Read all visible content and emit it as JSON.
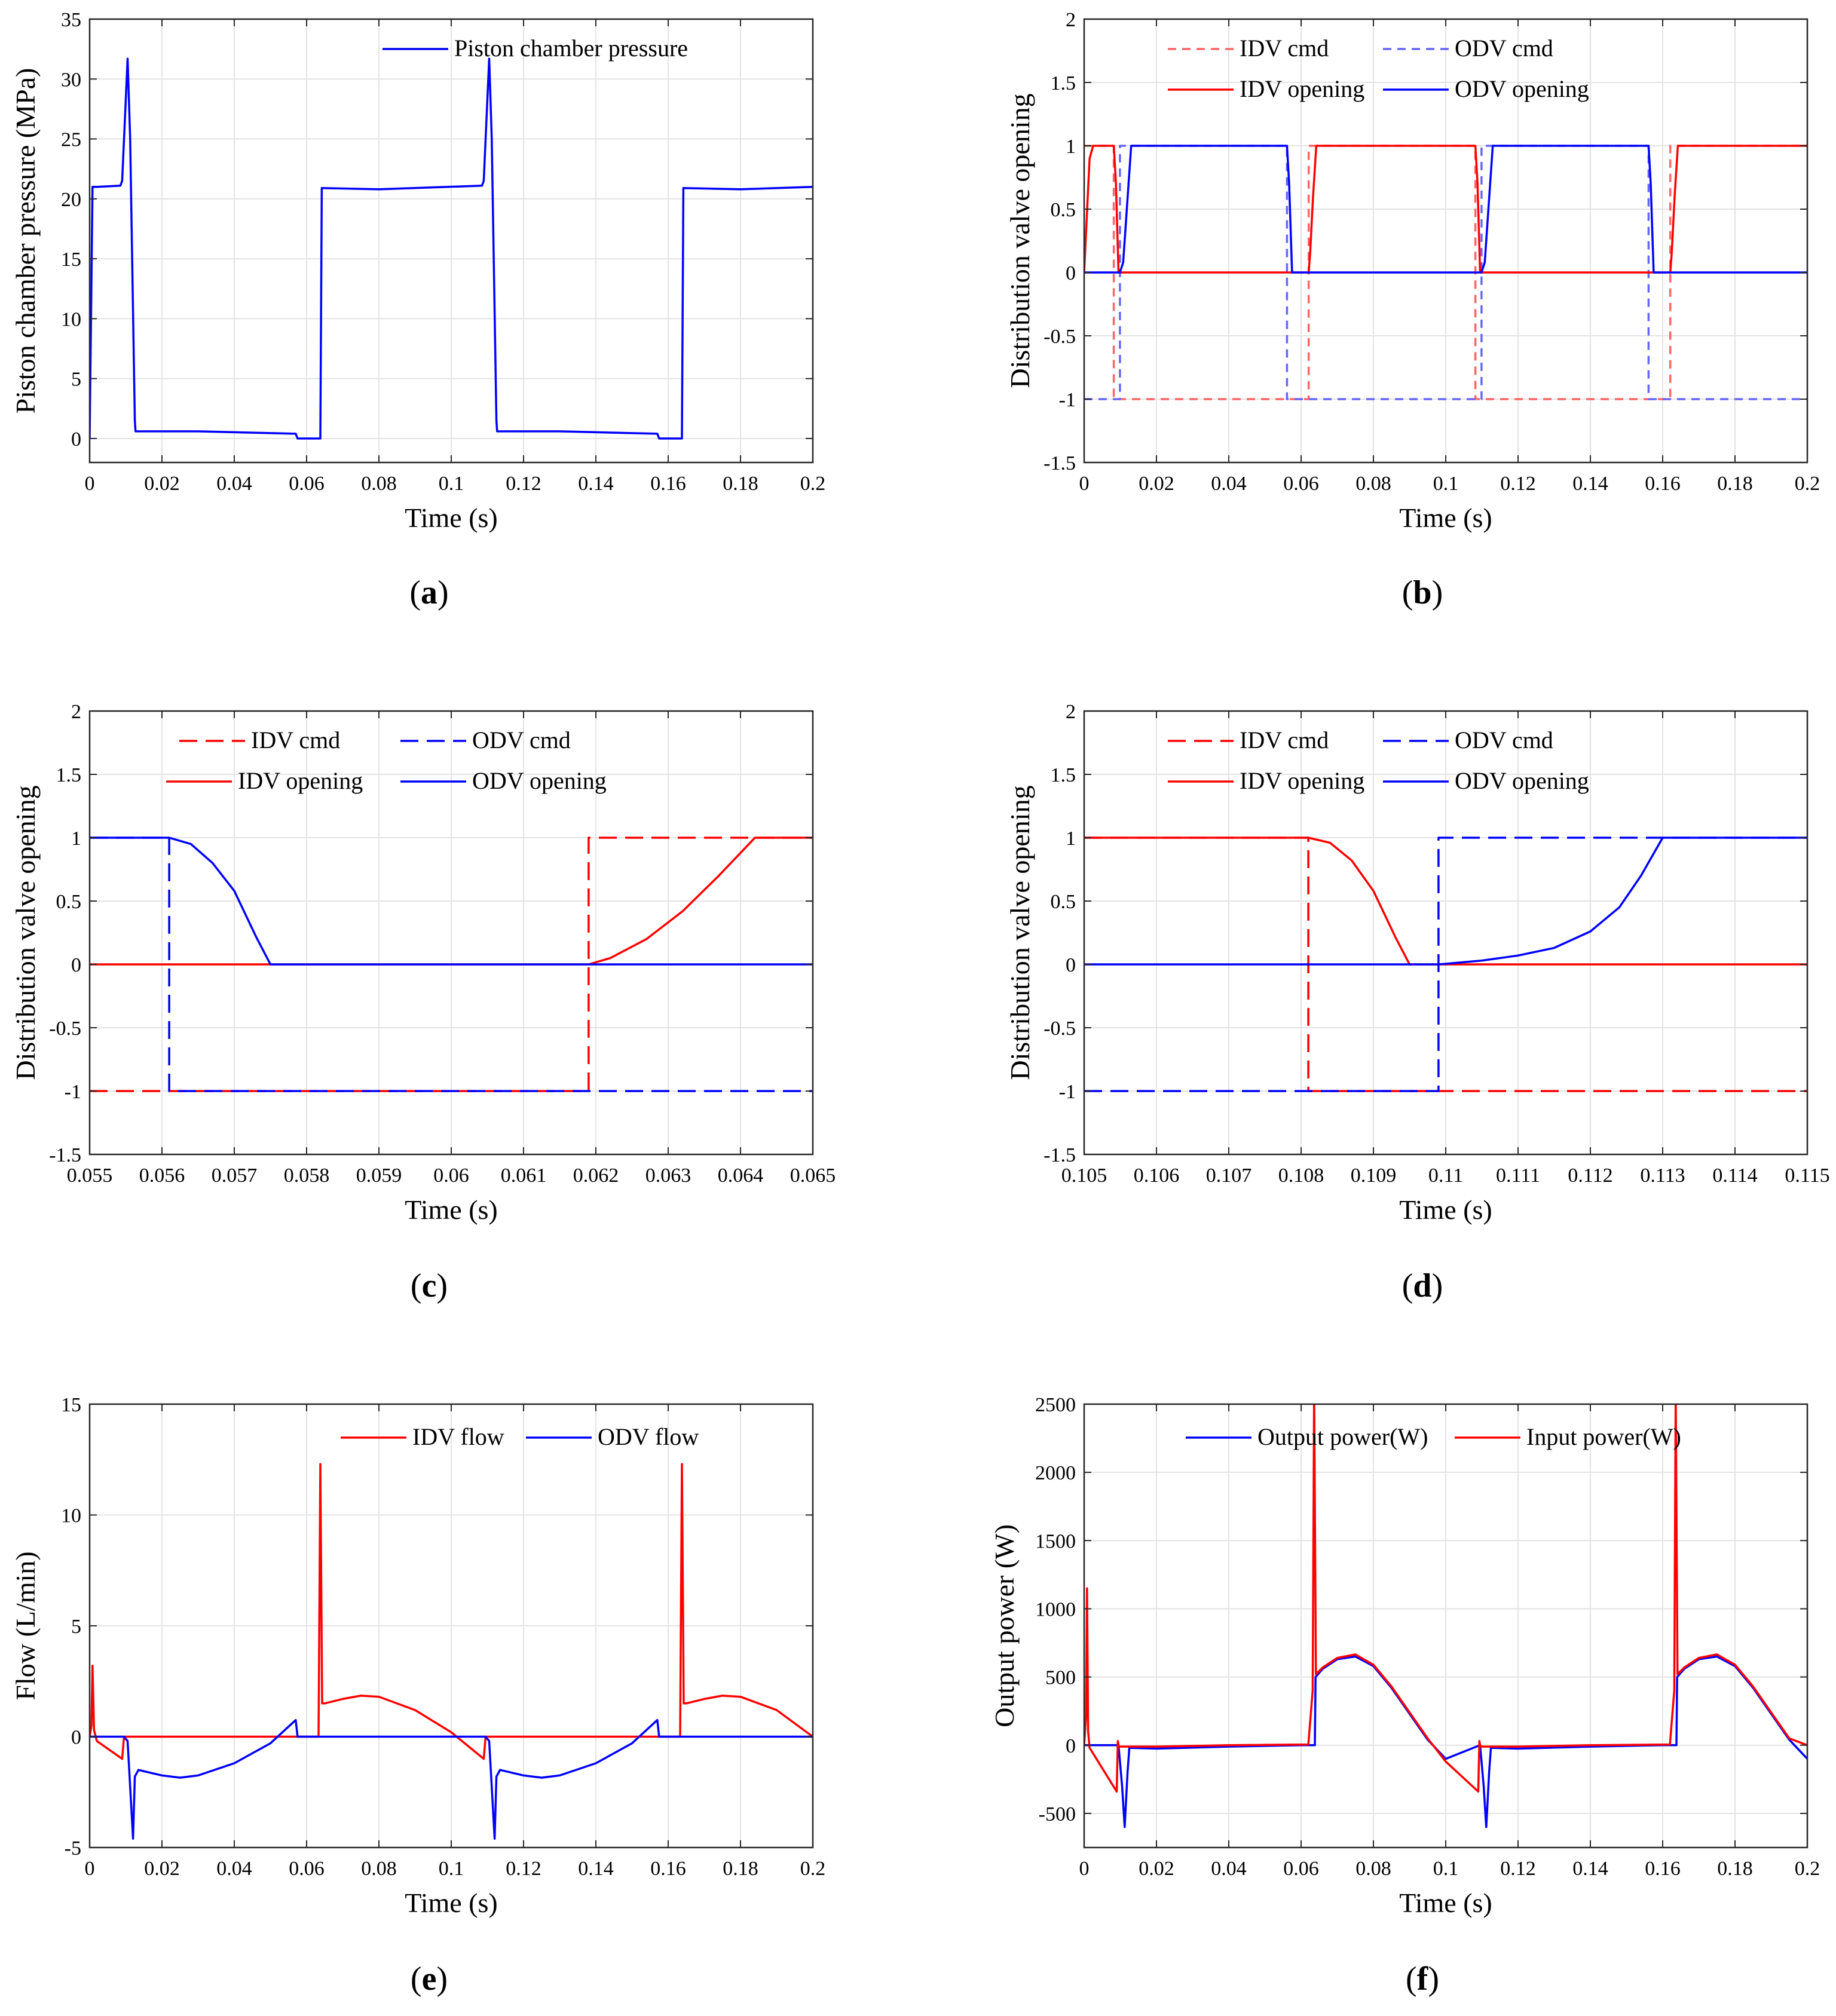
{
  "chart_data": [
    {
      "id": "a",
      "type": "line",
      "caption": "a",
      "xlabel": "Time (s)",
      "ylabel": "Piston chamber pressure (MPa)",
      "xlim": [
        0,
        0.2
      ],
      "ylim": [
        -2,
        35
      ],
      "xticks": [
        0,
        0.02,
        0.04,
        0.06,
        0.08,
        0.1,
        0.12,
        0.14,
        0.16,
        0.18,
        0.2
      ],
      "yticks": [
        0,
        5,
        10,
        15,
        20,
        25,
        30,
        35
      ],
      "legend": "top-right",
      "grid": true,
      "series": [
        {
          "name": "Piston chamber pressure",
          "color": "#0000ff",
          "dash": "solid",
          "x": [
            0,
            0.0008,
            0.002,
            0.0085,
            0.009,
            0.0105,
            0.0112,
            0.0125,
            0.0127,
            0.03,
            0.057,
            0.0575,
            0.0638,
            0.0642,
            0.08,
            0.1085,
            0.109,
            0.1105,
            0.1112,
            0.1125,
            0.1127,
            0.13,
            0.157,
            0.1575,
            0.1638,
            0.1642,
            0.18,
            0.2
          ],
          "y": [
            0,
            21,
            21,
            21.1,
            21.5,
            31.7,
            25,
            1.5,
            0.6,
            0.6,
            0.4,
            0,
            0,
            20.9,
            20.8,
            21.1,
            21.5,
            31.7,
            25,
            1.5,
            0.6,
            0.6,
            0.4,
            0,
            0,
            20.9,
            20.8,
            21
          ]
        }
      ]
    },
    {
      "id": "b",
      "type": "line",
      "caption": "b",
      "xlabel": "Time (s)",
      "ylabel": "Distribution valve opening",
      "xlim": [
        0,
        0.2
      ],
      "ylim": [
        -1.5,
        2
      ],
      "xticks": [
        0,
        0.02,
        0.04,
        0.06,
        0.08,
        0.1,
        0.12,
        0.14,
        0.16,
        0.18,
        0.2
      ],
      "yticks": [
        -1.5,
        -1,
        -0.5,
        0,
        0.5,
        1,
        1.5,
        2
      ],
      "legend": "top",
      "grid": true,
      "series": [
        {
          "name": "IDV cmd",
          "color": "#ff6666",
          "dash": "dashed",
          "x": [
            0,
            0.0082,
            0.0082,
            0.0621,
            0.0621,
            0.1082,
            0.1082,
            0.1621,
            0.1621,
            0.2
          ],
          "y": [
            1,
            1,
            -1,
            -1,
            1,
            1,
            -1,
            -1,
            1,
            1
          ]
        },
        {
          "name": "ODV cmd",
          "color": "#6666ff",
          "dash": "dashed",
          "x": [
            0,
            0.0099,
            0.0099,
            0.0561,
            0.0561,
            0.1099,
            0.1099,
            0.1561,
            0.1561,
            0.2
          ],
          "y": [
            -1,
            -1,
            1,
            1,
            -1,
            -1,
            1,
            1,
            -1,
            -1
          ]
        },
        {
          "name": "IDV opening",
          "color": "#ff0000",
          "dash": "solid",
          "x": [
            0,
            0.0005,
            0.0015,
            0.0025,
            0.0082,
            0.0088,
            0.0095,
            0.0621,
            0.0625,
            0.0633,
            0.0642,
            0.1082,
            0.1088,
            0.1095,
            0.1621,
            0.1625,
            0.1633,
            0.1642,
            0.2
          ],
          "y": [
            0,
            0.3,
            0.9,
            1,
            1,
            0.7,
            0,
            0,
            0.15,
            0.6,
            1,
            1,
            0.7,
            0,
            0,
            0.15,
            0.6,
            1,
            1
          ]
        },
        {
          "name": "ODV opening",
          "color": "#0000ff",
          "dash": "solid",
          "x": [
            0,
            0.0099,
            0.0108,
            0.0118,
            0.013,
            0.0561,
            0.0567,
            0.0575,
            0.1099,
            0.1108,
            0.1118,
            0.113,
            0.1561,
            0.1567,
            0.1575,
            0.2
          ],
          "y": [
            0,
            0,
            0.08,
            0.5,
            1,
            1,
            0.7,
            0,
            0,
            0.08,
            0.5,
            1,
            1,
            0.7,
            0,
            0
          ]
        }
      ]
    },
    {
      "id": "c",
      "type": "line",
      "caption": "c",
      "xlabel": "Time (s)",
      "ylabel": "Distribution valve opening",
      "xlim": [
        0.055,
        0.065
      ],
      "ylim": [
        -1.5,
        2
      ],
      "xticks": [
        0.055,
        0.056,
        0.057,
        0.058,
        0.059,
        0.06,
        0.061,
        0.062,
        0.063,
        0.064,
        0.065
      ],
      "yticks": [
        -1.5,
        -1,
        -0.5,
        0,
        0.5,
        1,
        1.5,
        2
      ],
      "legend": "top",
      "grid": true,
      "series": [
        {
          "name": "IDV cmd",
          "color": "#ff0000",
          "dash": "dashed",
          "x": [
            0.055,
            0.0619,
            0.0619,
            0.065
          ],
          "y": [
            -1,
            -1,
            1,
            1
          ]
        },
        {
          "name": "ODV cmd",
          "color": "#0000ff",
          "dash": "dashed",
          "x": [
            0.055,
            0.0561,
            0.0561,
            0.065
          ],
          "y": [
            1,
            1,
            -1,
            -1
          ]
        },
        {
          "name": "IDV opening",
          "color": "#ff0000",
          "dash": "solid",
          "x": [
            0.055,
            0.0619,
            0.0622,
            0.0627,
            0.0632,
            0.0637,
            0.0642,
            0.065
          ],
          "y": [
            0,
            0,
            0.05,
            0.2,
            0.42,
            0.7,
            1,
            1
          ]
        },
        {
          "name": "ODV opening",
          "color": "#0000ff",
          "dash": "solid",
          "x": [
            0.055,
            0.0561,
            0.0564,
            0.0567,
            0.057,
            0.0573,
            0.0575,
            0.065
          ],
          "y": [
            1,
            1,
            0.95,
            0.8,
            0.58,
            0.22,
            0,
            0
          ]
        }
      ]
    },
    {
      "id": "d",
      "type": "line",
      "caption": "d",
      "xlabel": "Time (s)",
      "ylabel": "Distribution valve opening",
      "xlim": [
        0.105,
        0.115
      ],
      "ylim": [
        -1.5,
        2
      ],
      "xticks": [
        0.105,
        0.106,
        0.107,
        0.108,
        0.109,
        0.11,
        0.111,
        0.112,
        0.113,
        0.114,
        0.115
      ],
      "yticks": [
        -1.5,
        -1,
        -0.5,
        0,
        0.5,
        1,
        1.5,
        2
      ],
      "legend": "top",
      "grid": true,
      "series": [
        {
          "name": "IDV cmd",
          "color": "#ff0000",
          "dash": "dashed",
          "x": [
            0.105,
            0.1081,
            0.1081,
            0.115
          ],
          "y": [
            1,
            1,
            -1,
            -1
          ]
        },
        {
          "name": "ODV cmd",
          "color": "#0000ff",
          "dash": "dashed",
          "x": [
            0.105,
            0.1099,
            0.1099,
            0.115
          ],
          "y": [
            -1,
            -1,
            1,
            1
          ]
        },
        {
          "name": "IDV opening",
          "color": "#ff0000",
          "dash": "solid",
          "x": [
            0.105,
            0.1081,
            0.1084,
            0.1087,
            0.109,
            0.1093,
            0.1095,
            0.115
          ],
          "y": [
            1,
            1,
            0.96,
            0.82,
            0.58,
            0.22,
            0,
            0
          ]
        },
        {
          "name": "ODV opening",
          "color": "#0000ff",
          "dash": "solid",
          "x": [
            0.105,
            0.1099,
            0.1105,
            0.111,
            0.1115,
            0.112,
            0.1124,
            0.1127,
            0.113,
            0.115
          ],
          "y": [
            0,
            0,
            0.03,
            0.07,
            0.13,
            0.26,
            0.45,
            0.7,
            1,
            1
          ]
        }
      ]
    },
    {
      "id": "e",
      "type": "line",
      "caption": "e",
      "xlabel": "Time (s)",
      "ylabel": "Flow (L/min)",
      "xlim": [
        0,
        0.2
      ],
      "ylim": [
        -5,
        15
      ],
      "xticks": [
        0,
        0.02,
        0.04,
        0.06,
        0.08,
        0.1,
        0.12,
        0.14,
        0.16,
        0.18,
        0.2
      ],
      "yticks": [
        -5,
        0,
        5,
        10,
        15
      ],
      "legend": "top-right",
      "grid": true,
      "series": [
        {
          "name": "IDV flow",
          "color": "#ff0000",
          "dash": "solid",
          "x": [
            0,
            0.0005,
            0.0008,
            0.0012,
            0.002,
            0.009,
            0.0095,
            0.06,
            0.0633,
            0.0638,
            0.0643,
            0.065,
            0.07,
            0.075,
            0.08,
            0.09,
            0.1,
            0.109,
            0.1095,
            0.16,
            0.1633,
            0.1638,
            0.1643,
            0.165,
            0.17,
            0.175,
            0.18,
            0.19,
            0.2
          ],
          "y": [
            0,
            0.5,
            3.2,
            0.3,
            -0.2,
            -1,
            0,
            0,
            0,
            12.3,
            1.5,
            1.5,
            1.7,
            1.85,
            1.8,
            1.2,
            0.2,
            -1,
            0,
            0,
            0,
            12.3,
            1.5,
            1.5,
            1.7,
            1.85,
            1.8,
            1.2,
            0
          ]
        },
        {
          "name": "ODV flow",
          "color": "#0000ff",
          "dash": "solid",
          "x": [
            0,
            0.0095,
            0.0105,
            0.012,
            0.0125,
            0.0135,
            0.02,
            0.025,
            0.03,
            0.04,
            0.05,
            0.057,
            0.0575,
            0.06,
            0.0958,
            0.1095,
            0.1105,
            0.112,
            0.1125,
            0.1135,
            0.12,
            0.125,
            0.13,
            0.14,
            0.15,
            0.157,
            0.1575,
            0.2
          ],
          "y": [
            0,
            0,
            -0.2,
            -4.6,
            -1.8,
            -1.5,
            -1.75,
            -1.85,
            -1.75,
            -1.2,
            -0.3,
            0.75,
            0,
            0,
            0,
            0,
            -0.2,
            -4.6,
            -1.8,
            -1.5,
            -1.75,
            -1.85,
            -1.75,
            -1.2,
            -0.3,
            0.75,
            0,
            0
          ]
        }
      ]
    },
    {
      "id": "f",
      "type": "line",
      "caption": "f",
      "xlabel": "Time (s)",
      "ylabel": "Output power (W)",
      "xlim": [
        0,
        0.2
      ],
      "ylim": [
        -750,
        2500
      ],
      "xticks": [
        0,
        0.02,
        0.04,
        0.06,
        0.08,
        0.1,
        0.12,
        0.14,
        0.16,
        0.18,
        0.2
      ],
      "yticks": [
        -500,
        0,
        500,
        1000,
        1500,
        2000,
        2500
      ],
      "legend": "top",
      "grid": true,
      "series": [
        {
          "name": "Output power(W)",
          "color": "#0000ff",
          "dash": "solid",
          "x": [
            0,
            0.0095,
            0.0105,
            0.0112,
            0.012,
            0.0125,
            0.013,
            0.02,
            0.04,
            0.06,
            0.0638,
            0.064,
            0.066,
            0.07,
            0.075,
            0.08,
            0.085,
            0.09,
            0.095,
            0.1,
            0.1095,
            0.1105,
            0.1112,
            0.112,
            0.1125,
            0.113,
            0.12,
            0.14,
            0.16,
            0.1638,
            0.164,
            0.166,
            0.17,
            0.175,
            0.18,
            0.185,
            0.19,
            0.195,
            0.2
          ],
          "y": [
            0,
            0,
            -300,
            -600,
            -200,
            -20,
            -20,
            -25,
            -10,
            0,
            0,
            500,
            560,
            630,
            650,
            580,
            420,
            230,
            40,
            -100,
            0,
            -300,
            -600,
            -200,
            -20,
            -20,
            -25,
            -10,
            0,
            0,
            500,
            560,
            630,
            650,
            580,
            420,
            230,
            40,
            -100
          ]
        },
        {
          "name": "Input power(W)",
          "color": "#ff0000",
          "dash": "solid",
          "x": [
            0,
            0.0005,
            0.0008,
            0.0011,
            0.0015,
            0.002,
            0.009,
            0.0093,
            0.0096,
            0.02,
            0.04,
            0.062,
            0.0632,
            0.0636,
            0.0641,
            0.066,
            0.07,
            0.075,
            0.08,
            0.085,
            0.09,
            0.095,
            0.1,
            0.109,
            0.1093,
            0.1096,
            0.12,
            0.14,
            0.162,
            0.1632,
            0.1636,
            0.1641,
            0.166,
            0.17,
            0.175,
            0.18,
            0.185,
            0.19,
            0.195,
            0.2
          ],
          "y": [
            0,
            200,
            1150,
            100,
            -20,
            -40,
            -340,
            30,
            -10,
            -10,
            0,
            5,
            400,
            2600,
            520,
            570,
            640,
            665,
            590,
            430,
            240,
            50,
            -120,
            -340,
            30,
            -10,
            -10,
            0,
            5,
            400,
            2600,
            520,
            570,
            640,
            665,
            590,
            430,
            240,
            50,
            0
          ]
        }
      ]
    }
  ]
}
